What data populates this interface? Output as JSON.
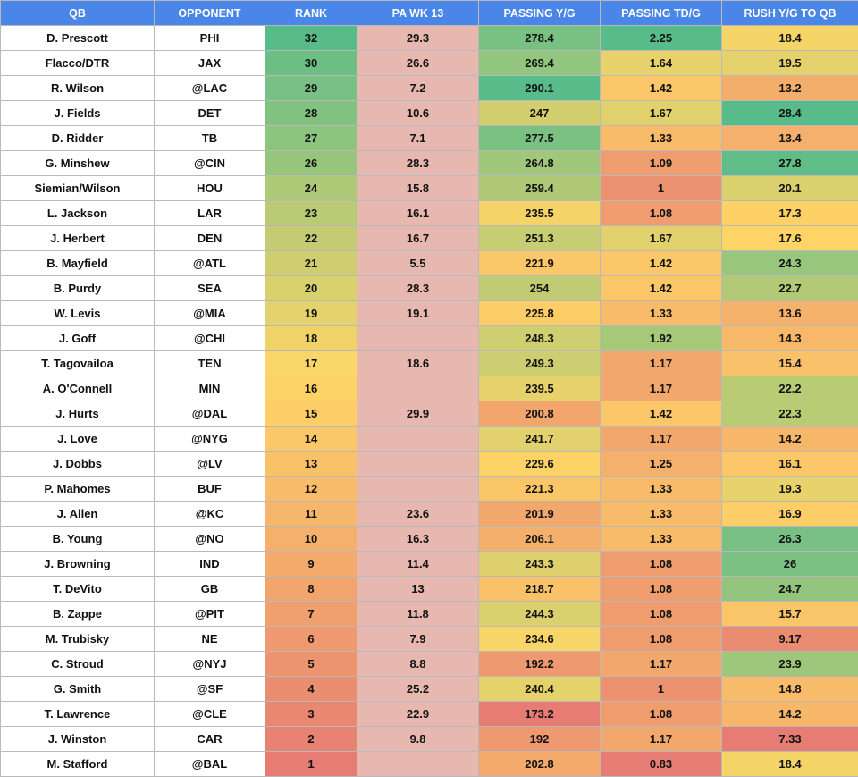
{
  "table": {
    "columns": [
      "QB",
      "OPPONENT",
      "RANK",
      "PA WK 13",
      "PASSING Y/G",
      "PASSING TD/G",
      "RUSH Y/G TO QB"
    ],
    "rows": [
      {
        "qb": "D. Prescott",
        "opp": "PHI",
        "rank": "32",
        "pa": "29.3",
        "py": "278.4",
        "ptd": "2.25",
        "ry": "18.4"
      },
      {
        "qb": "Flacco/DTR",
        "opp": "JAX",
        "rank": "30",
        "pa": "26.6",
        "py": "269.4",
        "ptd": "1.64",
        "ry": "19.5"
      },
      {
        "qb": "R. Wilson",
        "opp": "@LAC",
        "rank": "29",
        "pa": "7.2",
        "py": "290.1",
        "ptd": "1.42",
        "ry": "13.2"
      },
      {
        "qb": "J. Fields",
        "opp": "DET",
        "rank": "28",
        "pa": "10.6",
        "py": "247",
        "ptd": "1.67",
        "ry": "28.4"
      },
      {
        "qb": "D. Ridder",
        "opp": "TB",
        "rank": "27",
        "pa": "7.1",
        "py": "277.5",
        "ptd": "1.33",
        "ry": "13.4"
      },
      {
        "qb": "G. Minshew",
        "opp": "@CIN",
        "rank": "26",
        "pa": "28.3",
        "py": "264.8",
        "ptd": "1.09",
        "ry": "27.8"
      },
      {
        "qb": "Siemian/Wilson",
        "opp": "HOU",
        "rank": "24",
        "pa": "15.8",
        "py": "259.4",
        "ptd": "1",
        "ry": "20.1"
      },
      {
        "qb": "L. Jackson",
        "opp": "LAR",
        "rank": "23",
        "pa": "16.1",
        "py": "235.5",
        "ptd": "1.08",
        "ry": "17.3"
      },
      {
        "qb": "J. Herbert",
        "opp": "DEN",
        "rank": "22",
        "pa": "16.7",
        "py": "251.3",
        "ptd": "1.67",
        "ry": "17.6"
      },
      {
        "qb": "B. Mayfield",
        "opp": "@ATL",
        "rank": "21",
        "pa": "5.5",
        "py": "221.9",
        "ptd": "1.42",
        "ry": "24.3"
      },
      {
        "qb": "B. Purdy",
        "opp": "SEA",
        "rank": "20",
        "pa": "28.3",
        "py": "254",
        "ptd": "1.42",
        "ry": "22.7"
      },
      {
        "qb": "W. Levis",
        "opp": "@MIA",
        "rank": "19",
        "pa": "19.1",
        "py": "225.8",
        "ptd": "1.33",
        "ry": "13.6"
      },
      {
        "qb": "J. Goff",
        "opp": "@CHI",
        "rank": "18",
        "pa": "",
        "py": "248.3",
        "ptd": "1.92",
        "ry": "14.3"
      },
      {
        "qb": "T. Tagovailoa",
        "opp": "TEN",
        "rank": "17",
        "pa": "18.6",
        "py": "249.3",
        "ptd": "1.17",
        "ry": "15.4"
      },
      {
        "qb": "A. O'Connell",
        "opp": "MIN",
        "rank": "16",
        "pa": "",
        "py": "239.5",
        "ptd": "1.17",
        "ry": "22.2"
      },
      {
        "qb": "J. Hurts",
        "opp": "@DAL",
        "rank": "15",
        "pa": "29.9",
        "py": "200.8",
        "ptd": "1.42",
        "ry": "22.3"
      },
      {
        "qb": "J. Love",
        "opp": "@NYG",
        "rank": "14",
        "pa": "",
        "py": "241.7",
        "ptd": "1.17",
        "ry": "14.2"
      },
      {
        "qb": "J. Dobbs",
        "opp": "@LV",
        "rank": "13",
        "pa": "",
        "py": "229.6",
        "ptd": "1.25",
        "ry": "16.1"
      },
      {
        "qb": "P. Mahomes",
        "opp": "BUF",
        "rank": "12",
        "pa": "",
        "py": "221.3",
        "ptd": "1.33",
        "ry": "19.3"
      },
      {
        "qb": "J. Allen",
        "opp": "@KC",
        "rank": "11",
        "pa": "23.6",
        "py": "201.9",
        "ptd": "1.33",
        "ry": "16.9"
      },
      {
        "qb": "B. Young",
        "opp": "@NO",
        "rank": "10",
        "pa": "16.3",
        "py": "206.1",
        "ptd": "1.33",
        "ry": "26.3"
      },
      {
        "qb": "J. Browning",
        "opp": "IND",
        "rank": "9",
        "pa": "11.4",
        "py": "243.3",
        "ptd": "1.08",
        "ry": "26"
      },
      {
        "qb": "T. DeVito",
        "opp": "GB",
        "rank": "8",
        "pa": "13",
        "py": "218.7",
        "ptd": "1.08",
        "ry": "24.7"
      },
      {
        "qb": "B. Zappe",
        "opp": "@PIT",
        "rank": "7",
        "pa": "11.8",
        "py": "244.3",
        "ptd": "1.08",
        "ry": "15.7"
      },
      {
        "qb": "M. Trubisky",
        "opp": "NE",
        "rank": "6",
        "pa": "7.9",
        "py": "234.6",
        "ptd": "1.08",
        "ry": "9.17"
      },
      {
        "qb": "C. Stroud",
        "opp": "@NYJ",
        "rank": "5",
        "pa": "8.8",
        "py": "192.2",
        "ptd": "1.17",
        "ry": "23.9"
      },
      {
        "qb": "G. Smith",
        "opp": "@SF",
        "rank": "4",
        "pa": "25.2",
        "py": "240.4",
        "ptd": "1",
        "ry": "14.8"
      },
      {
        "qb": "T. Lawrence",
        "opp": "@CLE",
        "rank": "3",
        "pa": "22.9",
        "py": "173.2",
        "ptd": "1.08",
        "ry": "14.2"
      },
      {
        "qb": "J. Winston",
        "opp": "CAR",
        "rank": "2",
        "pa": "9.8",
        "py": "192",
        "ptd": "1.17",
        "ry": "7.33"
      },
      {
        "qb": "M. Stafford",
        "opp": "@BAL",
        "rank": "1",
        "pa": "",
        "py": "202.8",
        "ptd": "0.83",
        "ry": "18.4"
      }
    ]
  },
  "colors": {
    "header_bg": "#4a86e8",
    "header_text": "#ffffff",
    "pa_fill": "#e6b8af",
    "scale_low": "#e67c73",
    "scale_mid": "#ffd666",
    "scale_high": "#57bb8a"
  }
}
